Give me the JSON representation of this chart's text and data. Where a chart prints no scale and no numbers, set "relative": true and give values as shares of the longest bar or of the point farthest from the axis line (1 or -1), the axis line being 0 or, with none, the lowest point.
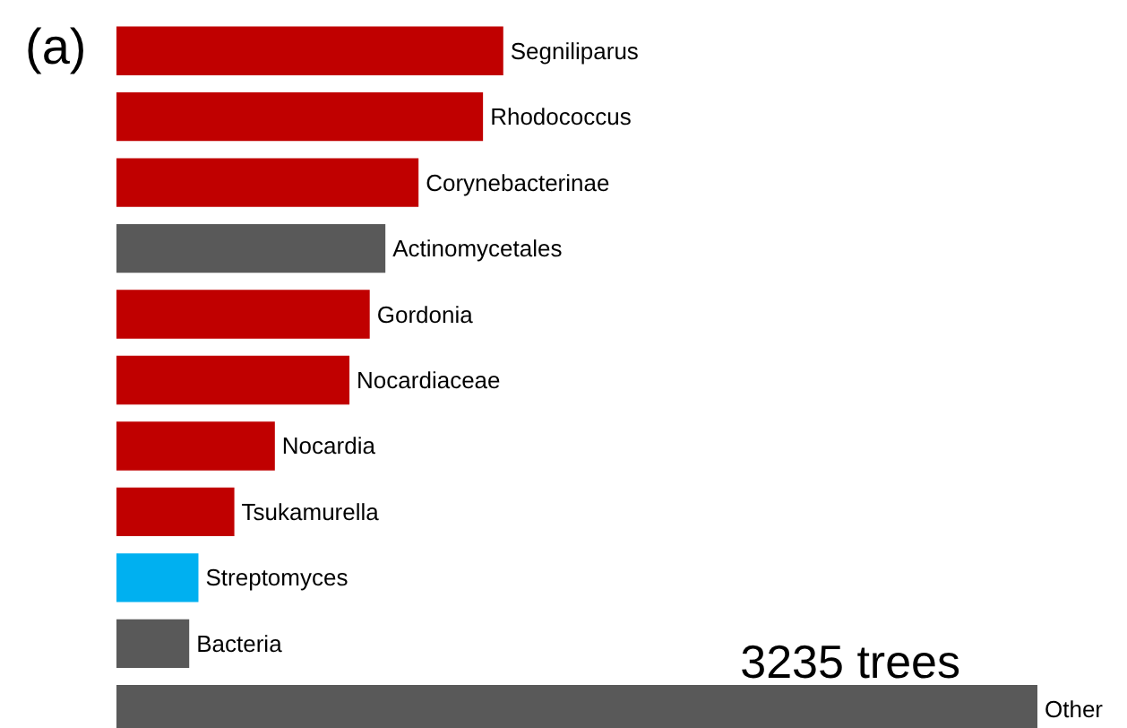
{
  "chart_data": {
    "type": "bar",
    "orientation": "horizontal",
    "relative": true,
    "title": "(a)",
    "categories": [
      "Segniliparus",
      "Rhodococcus",
      "Corynebacterinae",
      "Actinomycetales",
      "Gordonia",
      "Nocardiaceae",
      "Nocardia",
      "Tsukamurella",
      "Streptomyces",
      "Bacteria",
      "Other"
    ],
    "values": [
      0.42,
      0.398,
      0.328,
      0.292,
      0.275,
      0.253,
      0.172,
      0.128,
      0.089,
      0.079,
      1
    ],
    "colors": [
      "#c00000",
      "#c00000",
      "#c00000",
      "#595959",
      "#c00000",
      "#c00000",
      "#c00000",
      "#c00000",
      "#00b0f0",
      "#595959",
      "#595959"
    ],
    "annotations": [
      "3235 trees"
    ]
  }
}
